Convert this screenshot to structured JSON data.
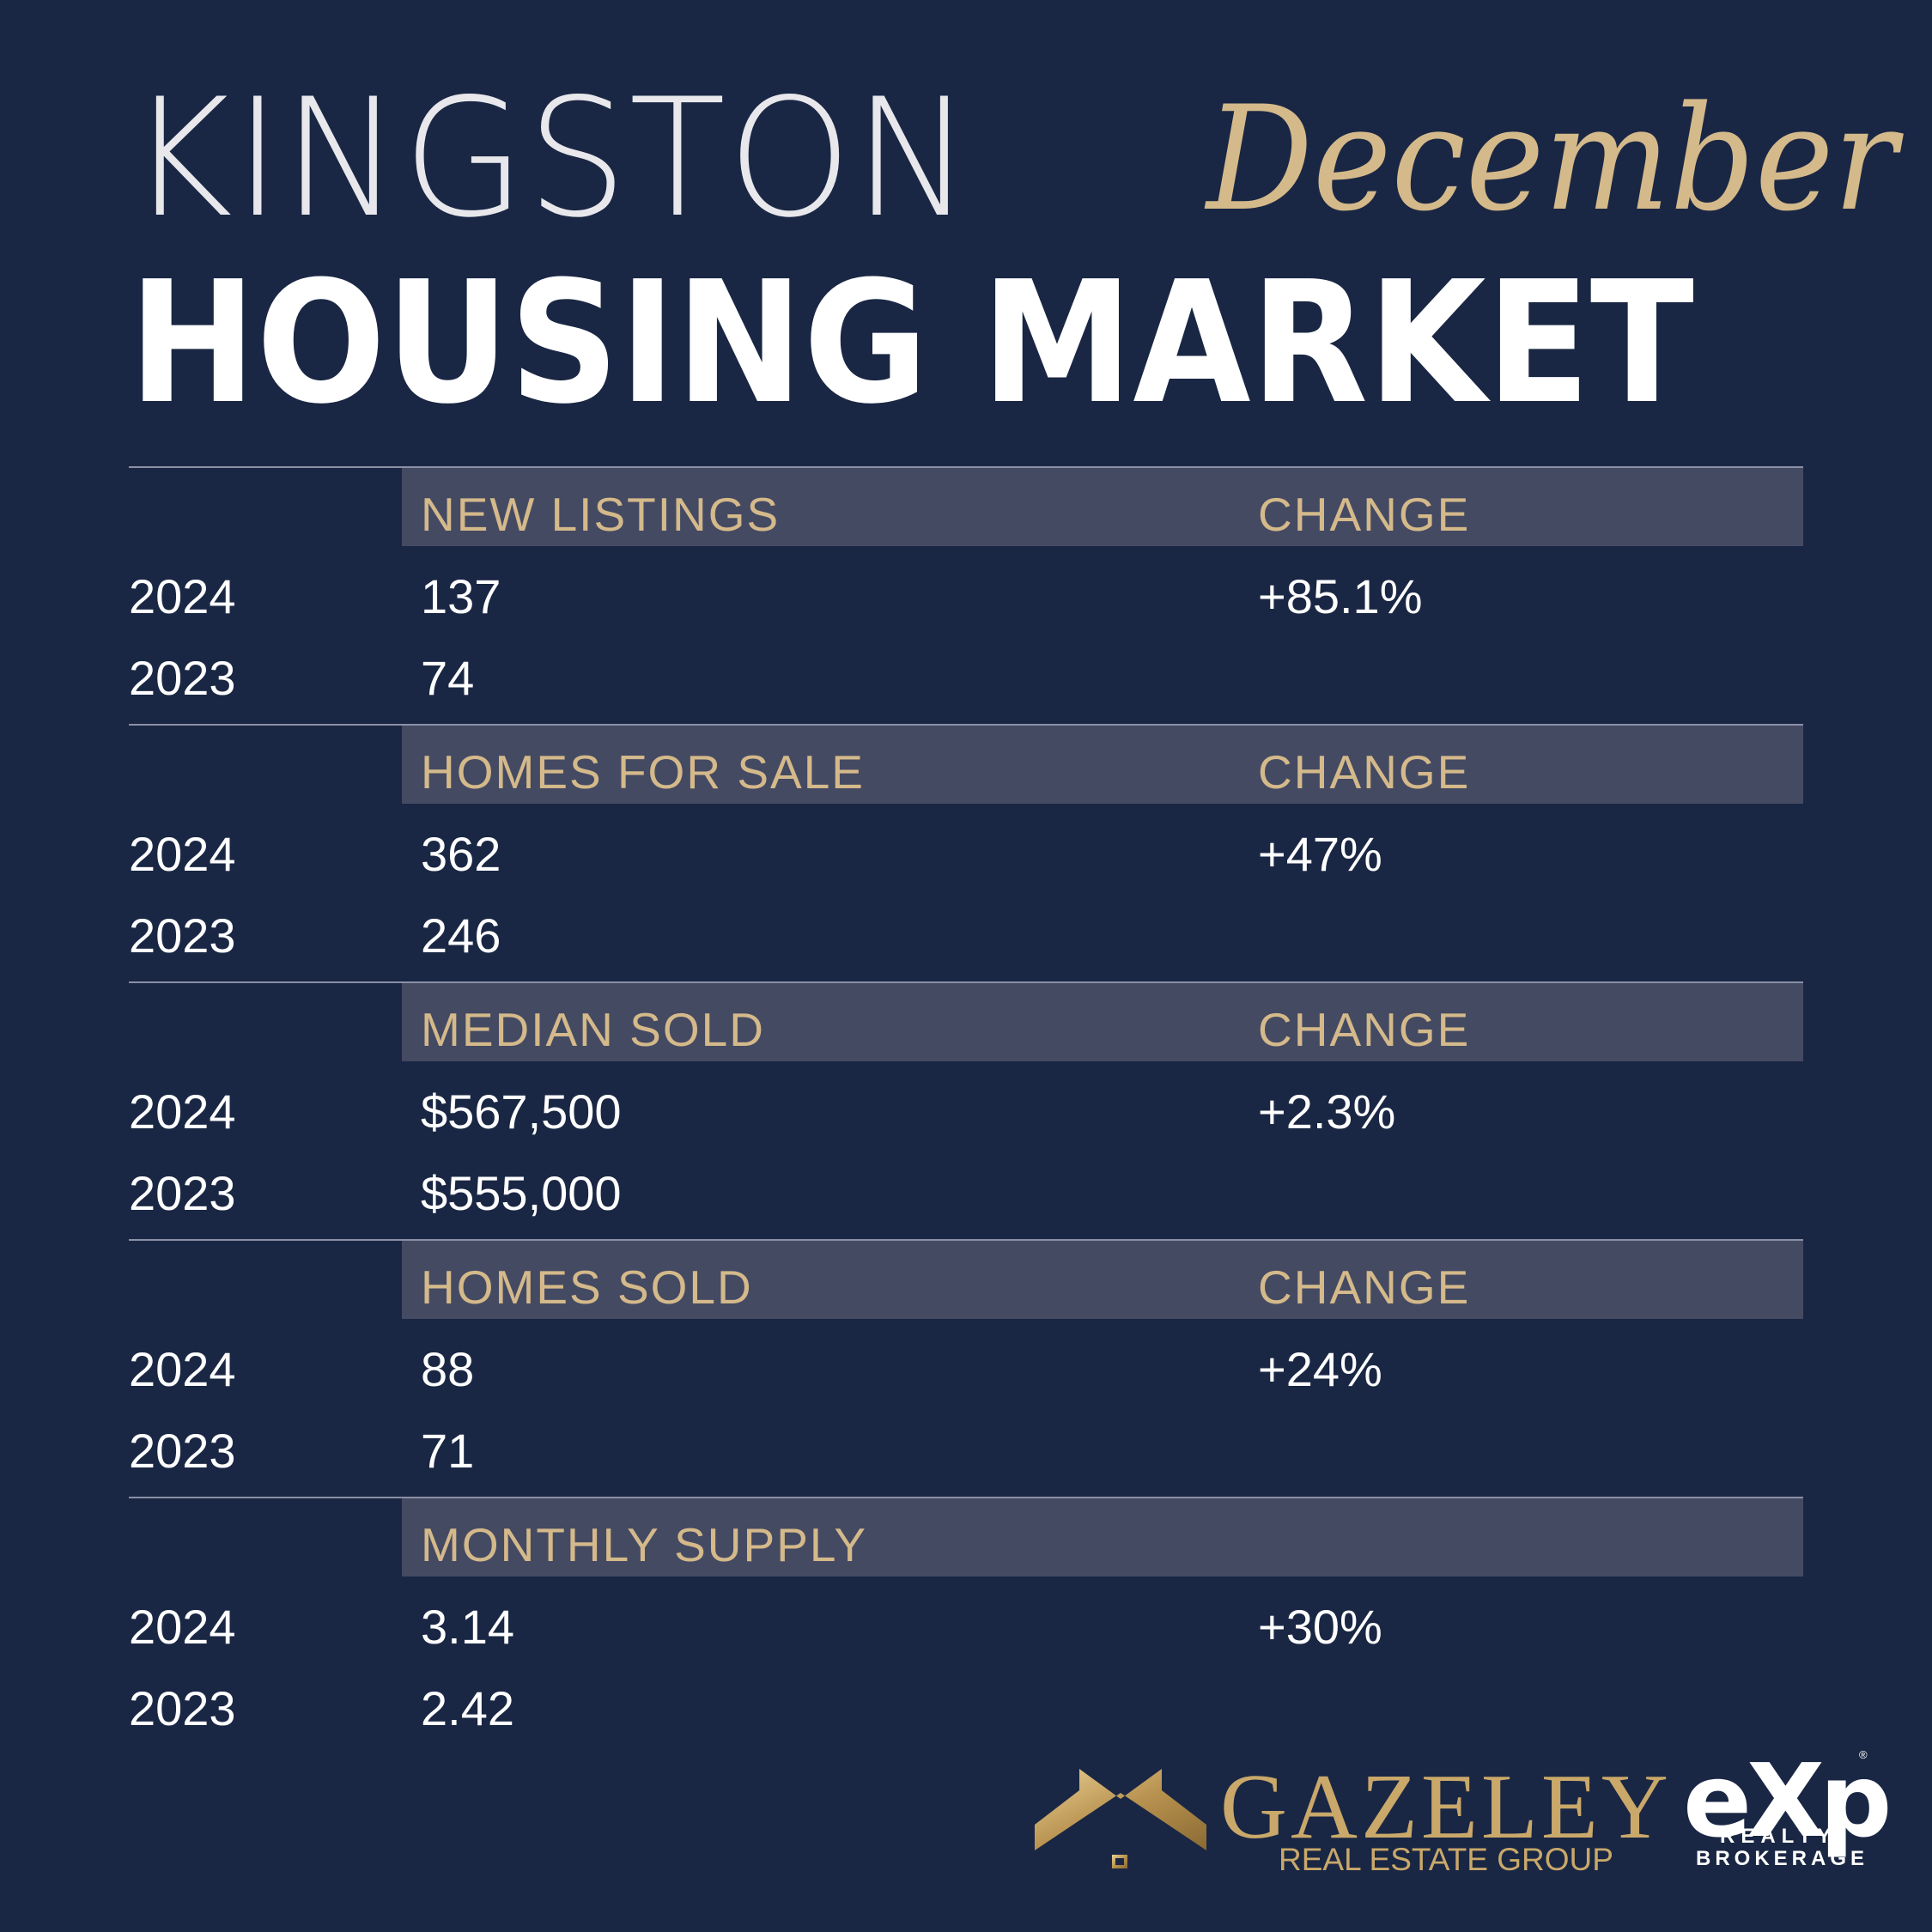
{
  "title": {
    "city": "KINGSTON",
    "month": "December",
    "headline": "HOUSING MARKET"
  },
  "colors": {
    "background": "#1a2744",
    "accent_gold": "#d4b98a",
    "header_band": "#454a63",
    "text": "#ffffff"
  },
  "sections": [
    {
      "category": "NEW LISTINGS",
      "change_label": "CHANGE",
      "rows": [
        {
          "year": "2024",
          "value": "137",
          "change": "+85.1%"
        },
        {
          "year": "2023",
          "value": "74",
          "change": ""
        }
      ]
    },
    {
      "category": "HOMES FOR SALE",
      "change_label": "CHANGE",
      "rows": [
        {
          "year": "2024",
          "value": "362",
          "change": "+47%"
        },
        {
          "year": "2023",
          "value": "246",
          "change": ""
        }
      ]
    },
    {
      "category": "MEDIAN SOLD",
      "change_label": "CHANGE",
      "rows": [
        {
          "year": "2024",
          "value": "$567,500",
          "change": "+2.3%"
        },
        {
          "year": "2023",
          "value": "$555,000",
          "change": ""
        }
      ]
    },
    {
      "category": "HOMES SOLD",
      "change_label": "CHANGE",
      "rows": [
        {
          "year": "2024",
          "value": "88",
          "change": "+24%"
        },
        {
          "year": "2023",
          "value": "71",
          "change": ""
        }
      ]
    },
    {
      "category": "MONTHLY SUPPLY",
      "change_label": "",
      "rows": [
        {
          "year": "2024",
          "value": "3.14",
          "change": "+30%"
        },
        {
          "year": "2023",
          "value": "2.42",
          "change": ""
        }
      ]
    }
  ],
  "footer": {
    "brand_name": "GAZELEY",
    "brand_sub": "REAL ESTATE GROUP",
    "partner_logo": "eXp",
    "partner_sub1": "REALTY",
    "partner_sub2": "BROKERAGE",
    "partner_mark": "®"
  }
}
